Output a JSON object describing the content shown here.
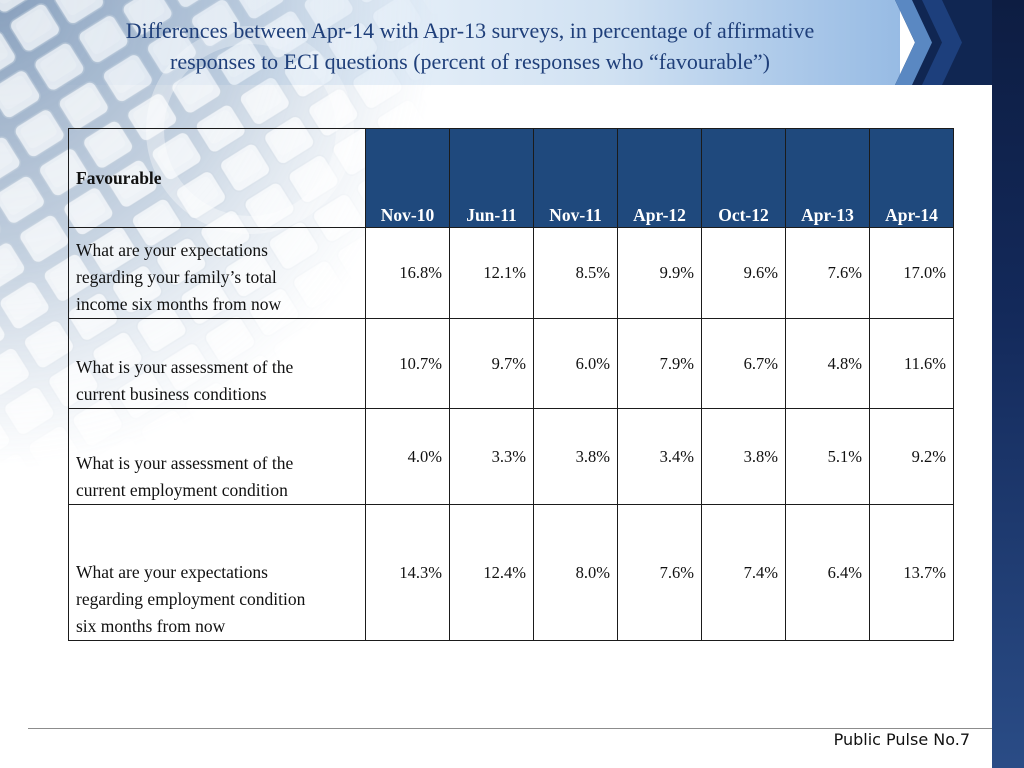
{
  "colors": {
    "title": "#1f3f7a",
    "header_fill": "#1f497d",
    "header_text": "#ffffff"
  },
  "chart_data": {
    "type": "table",
    "title": "Differences between Apr-14 with Apr-13 surveys, in percentage of affirmative\nresponses to ECI questions (percent of responses who “favourable”)",
    "corner_label": "Favourable",
    "columns": [
      "Nov-10",
      "Jun-11",
      "Nov-11",
      "Apr-12",
      "Oct-12",
      "Apr-13",
      "Apr-14"
    ],
    "rows": [
      {
        "label": "What are your expectations\nregarding your family’s total\nincome six months from now",
        "values": [
          "16.8%",
          "12.1%",
          "8.5%",
          "9.9%",
          "9.6%",
          "7.6%",
          "17.0%"
        ]
      },
      {
        "label": "What is your assessment of the\ncurrent business conditions",
        "values": [
          "10.7%",
          "9.7%",
          "6.0%",
          "7.9%",
          "6.7%",
          "4.8%",
          "11.6%"
        ]
      },
      {
        "label": "What is your assessment of the\ncurrent employment condition",
        "values": [
          "4.0%",
          "3.3%",
          "3.8%",
          "3.4%",
          "3.8%",
          "5.1%",
          "9.2%"
        ]
      },
      {
        "label": "What are your expectations\nregarding employment condition\nsix months from now",
        "values": [
          "14.3%",
          "12.4%",
          "8.0%",
          "7.6%",
          "7.4%",
          "6.4%",
          "13.7%"
        ]
      }
    ]
  },
  "footer": {
    "text": "Public Pulse No.7"
  }
}
